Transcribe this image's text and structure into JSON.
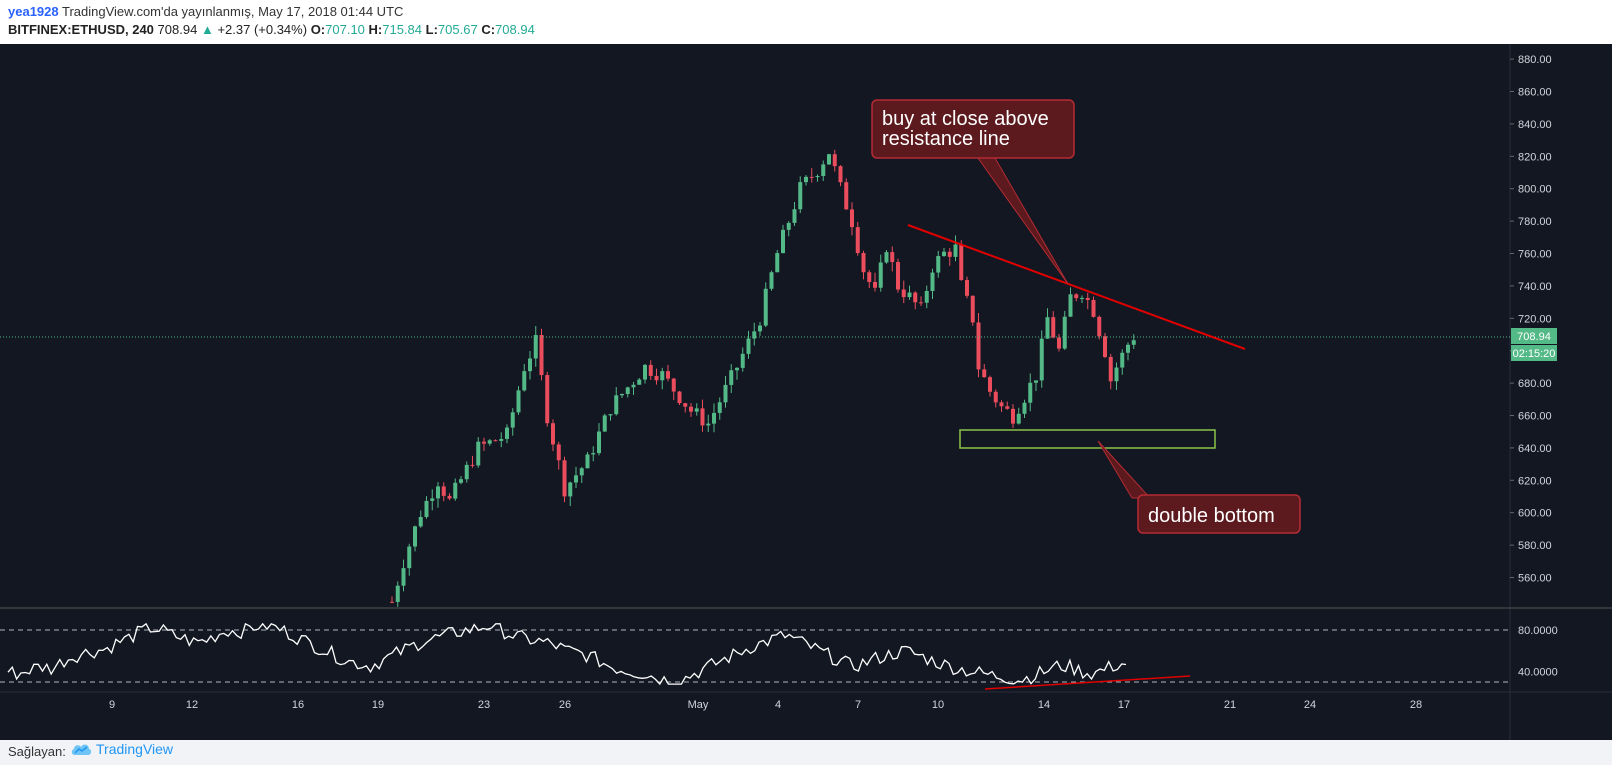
{
  "header": {
    "user": "yea1928",
    "published": "TradingView.com'da yayınlanmış, May 17, 2018 01:44 UTC",
    "symbol": "BITFINEX:ETHUSD, 240",
    "last": "708.94",
    "change": "+2.37 (+0.34%)",
    "o_label": "O:",
    "o_val": "707.10",
    "h_label": "H:",
    "h_val": "715.84",
    "l_label": "L:",
    "l_val": "705.67",
    "c_label": "C:",
    "c_val": "708.94"
  },
  "footer": {
    "provider_label": "Sağlayan:",
    "brand": "TradingView"
  },
  "colors": {
    "bg": "#131722",
    "up": "#53b987",
    "down": "#eb4d5c",
    "annotation": "#e00000",
    "box": "#8bc34a",
    "callout_bg": "#5c1a1e",
    "callout_border": "#b52b33"
  },
  "price_axis": {
    "ticks": [
      "880.00",
      "860.00",
      "840.00",
      "820.00",
      "800.00",
      "780.00",
      "760.00",
      "740.00",
      "720.00",
      "700.00",
      "680.00",
      "660.00",
      "640.00",
      "620.00",
      "600.00",
      "580.00",
      "560.00"
    ]
  },
  "price_labels": {
    "last": "708.94",
    "countdown": "02:15:20"
  },
  "rsi_axis": {
    "ticks": [
      "80.0000",
      "40.0000"
    ]
  },
  "time_axis": {
    "ticks": [
      "9",
      "12",
      "16",
      "19",
      "23",
      "26",
      "May",
      "4",
      "7",
      "10",
      "14",
      "17",
      "21",
      "24",
      "28"
    ]
  },
  "annotations": {
    "buy_callout": [
      "buy at close above",
      "resistance line"
    ],
    "double_bottom": "double bottom"
  },
  "chart_data": [
    {
      "type": "candlestick",
      "symbol": "BITFINEX:ETHUSD",
      "interval": "240",
      "x_ticks": [
        "9",
        "12",
        "16",
        "19",
        "23",
        "26",
        "May",
        "4",
        "7",
        "10",
        "14",
        "17",
        "21",
        "24",
        "28"
      ],
      "ylim": [
        545,
        890
      ],
      "last_price": 708.94,
      "close_path": [
        {
          "x": 0,
          "y": 545
        },
        {
          "x": 2,
          "y": 570
        },
        {
          "x": 5,
          "y": 600
        },
        {
          "x": 8,
          "y": 620
        },
        {
          "x": 10,
          "y": 607
        },
        {
          "x": 15,
          "y": 640
        },
        {
          "x": 20,
          "y": 648
        },
        {
          "x": 23,
          "y": 690
        },
        {
          "x": 25,
          "y": 705
        },
        {
          "x": 27,
          "y": 660
        },
        {
          "x": 30,
          "y": 615
        },
        {
          "x": 34,
          "y": 632
        },
        {
          "x": 38,
          "y": 665
        },
        {
          "x": 44,
          "y": 690
        },
        {
          "x": 47,
          "y": 685
        },
        {
          "x": 52,
          "y": 663
        },
        {
          "x": 55,
          "y": 655
        },
        {
          "x": 60,
          "y": 690
        },
        {
          "x": 64,
          "y": 720
        },
        {
          "x": 67,
          "y": 760
        },
        {
          "x": 71,
          "y": 800
        },
        {
          "x": 74,
          "y": 812
        },
        {
          "x": 76,
          "y": 823
        },
        {
          "x": 78,
          "y": 800
        },
        {
          "x": 80,
          "y": 780
        },
        {
          "x": 82,
          "y": 750
        },
        {
          "x": 84,
          "y": 735
        },
        {
          "x": 86,
          "y": 765
        },
        {
          "x": 88,
          "y": 740
        },
        {
          "x": 90,
          "y": 733
        },
        {
          "x": 92,
          "y": 725
        },
        {
          "x": 94,
          "y": 752
        },
        {
          "x": 96,
          "y": 760
        },
        {
          "x": 98,
          "y": 763
        },
        {
          "x": 99,
          "y": 740
        },
        {
          "x": 101,
          "y": 720
        },
        {
          "x": 102,
          "y": 690
        },
        {
          "x": 104,
          "y": 675
        },
        {
          "x": 106,
          "y": 665
        },
        {
          "x": 108,
          "y": 660
        },
        {
          "x": 110,
          "y": 672
        },
        {
          "x": 112,
          "y": 685
        },
        {
          "x": 114,
          "y": 720
        },
        {
          "x": 116,
          "y": 700
        },
        {
          "x": 118,
          "y": 733
        },
        {
          "x": 120,
          "y": 737
        },
        {
          "x": 122,
          "y": 725
        },
        {
          "x": 124,
          "y": 700
        },
        {
          "x": 125,
          "y": 682
        },
        {
          "x": 126,
          "y": 690
        },
        {
          "x": 128,
          "y": 704
        },
        {
          "x": 129,
          "y": 708.94
        }
      ],
      "rsi": {
        "ylim": [
          25,
          90
        ],
        "levels": [
          80,
          30
        ],
        "values": [
          40,
          38,
          42,
          45,
          43,
          50,
          55,
          58,
          60,
          62,
          68,
          72,
          78,
          82,
          80,
          75,
          72,
          68,
          70,
          75,
          80,
          78,
          82,
          85,
          84,
          80,
          75,
          70,
          65,
          60,
          55,
          50,
          48,
          45,
          50,
          55,
          60,
          65,
          70,
          72,
          75,
          78,
          80,
          82,
          85,
          80,
          75,
          72,
          70,
          68,
          65,
          60,
          58,
          55,
          50,
          45,
          42,
          40,
          38,
          35,
          32,
          30,
          35,
          40,
          45,
          50,
          55,
          60,
          65,
          68,
          72,
          75,
          70,
          65,
          60,
          55,
          50,
          45,
          48,
          52,
          55,
          58,
          60,
          56,
          52,
          48,
          45,
          42,
          40,
          38,
          36,
          35,
          32,
          34,
          38,
          42,
          46,
          44,
          40,
          38,
          42,
          46,
          48
        ]
      }
    }
  ]
}
